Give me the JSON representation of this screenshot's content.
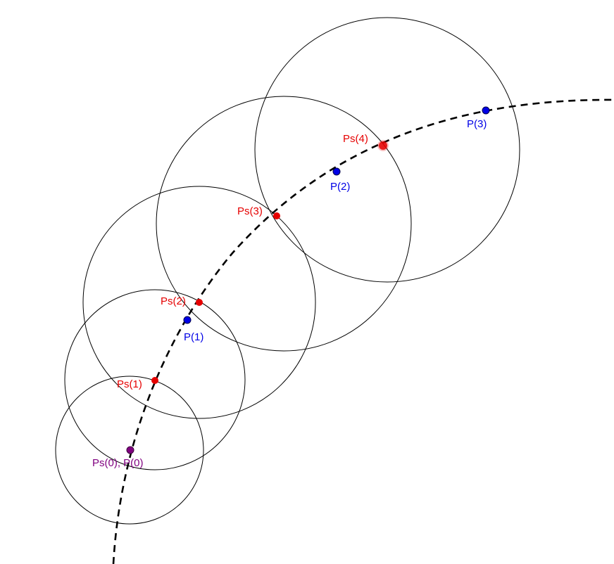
{
  "colors": {
    "sample_point": "#e60000",
    "path_point": "#0000e6",
    "start_point": "#800080",
    "circle": "#000000",
    "path": "#000000"
  },
  "labels": {
    "start": "Ps(0), P(0)",
    "p1": "P(1)",
    "p2": "P(2)",
    "p3": "P(3)",
    "ps1": "Ps(1)",
    "ps2": "Ps(2)",
    "ps3": "Ps(3)",
    "ps4": "Ps(4)"
  }
}
